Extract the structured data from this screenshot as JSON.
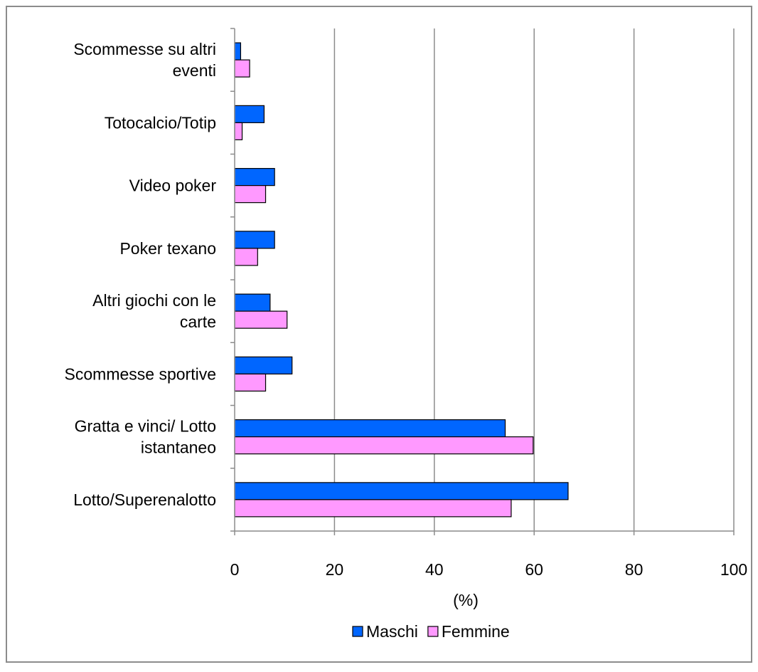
{
  "chart_data": {
    "type": "bar",
    "orientation": "horizontal",
    "categories": [
      [
        "Scommesse su altri",
        "eventi"
      ],
      [
        "Totocalcio/Totip"
      ],
      [
        "Video poker"
      ],
      [
        "Poker texano"
      ],
      [
        "Altri giochi con le",
        "carte"
      ],
      [
        "Scommesse sportive"
      ],
      [
        "Gratta e vinci/ Lotto",
        "istantaneo"
      ],
      [
        "Lotto/Superenalotto"
      ]
    ],
    "series": [
      {
        "name": "Maschi",
        "color": "#0066ff",
        "values": [
          1.2,
          5.9,
          8.0,
          8.0,
          7.1,
          11.5,
          54.2,
          66.8
        ]
      },
      {
        "name": "Femmine",
        "color": "#ff99ff",
        "values": [
          3.0,
          1.5,
          6.2,
          4.6,
          10.5,
          6.2,
          59.8,
          55.4
        ]
      }
    ],
    "xlabel": "(%)",
    "xlim": [
      0,
      100
    ],
    "xticks": [
      0,
      20,
      40,
      60,
      80,
      100
    ],
    "grid": "vertical",
    "legend": "bottom"
  }
}
